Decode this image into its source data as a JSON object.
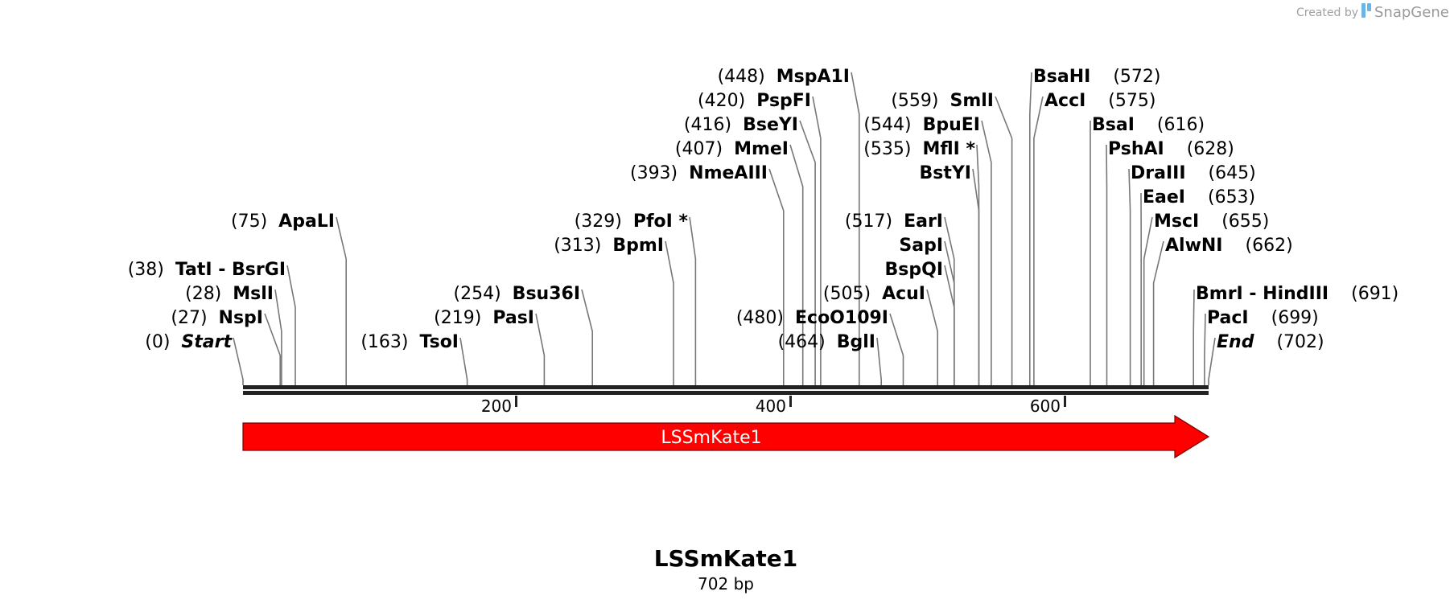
{
  "brand": {
    "created_by": "Created by",
    "name": "SnapGene",
    "icon": "snapgene-logo-icon"
  },
  "sequence": {
    "name": "LSSmKate1",
    "length_label": "702 bp",
    "length": 702
  },
  "ruler": {
    "ticks": [
      "200",
      "400",
      "600"
    ]
  },
  "feature": {
    "name": "LSSmKate1",
    "start": 0,
    "end": 702,
    "direction": "forward",
    "color": "#ff0000"
  },
  "sites": [
    {
      "name": "Start",
      "pos": 0,
      "pos_label": "(0)",
      "side": "left",
      "italic": true,
      "row": 0
    },
    {
      "name": "NspI",
      "pos": 27,
      "pos_label": "(27)",
      "side": "left",
      "row": 1
    },
    {
      "name": "MslI",
      "pos": 28,
      "pos_label": "(28)",
      "side": "left",
      "row": 2
    },
    {
      "name": "TatI  - BsrGI",
      "pos": 38,
      "pos_label": "(38)",
      "side": "left",
      "row": 3
    },
    {
      "name": "ApaLI",
      "pos": 75,
      "pos_label": "(75)",
      "side": "left",
      "row": 5
    },
    {
      "name": "TsoI",
      "pos": 163,
      "pos_label": "(163)",
      "side": "left",
      "row": 0
    },
    {
      "name": "PasI",
      "pos": 219,
      "pos_label": "(219)",
      "side": "left",
      "row": 1
    },
    {
      "name": "Bsu36I",
      "pos": 254,
      "pos_label": "(254)",
      "side": "left",
      "row": 2
    },
    {
      "name": "BpmI",
      "pos": 313,
      "pos_label": "(313)",
      "side": "left",
      "row": 4
    },
    {
      "name": "PfoI *",
      "pos": 329,
      "pos_label": "(329)",
      "side": "left",
      "row": 5
    },
    {
      "name": "NmeAIII",
      "pos": 393,
      "pos_label": "(393)",
      "side": "left",
      "row": 7
    },
    {
      "name": "MmeI",
      "pos": 407,
      "pos_label": "(407)",
      "side": "left",
      "row": 8
    },
    {
      "name": "BseYI",
      "pos": 416,
      "pos_label": "(416)",
      "side": "left",
      "row": 9
    },
    {
      "name": "PspFI",
      "pos": 420,
      "pos_label": "(420)",
      "side": "left",
      "row": 10
    },
    {
      "name": "MspA1I",
      "pos": 448,
      "pos_label": "(448)",
      "side": "left",
      "row": 11
    },
    {
      "name": "BglI",
      "pos": 464,
      "pos_label": "(464)",
      "side": "left",
      "row": 0
    },
    {
      "name": "EcoO109I",
      "pos": 480,
      "pos_label": "(480)",
      "side": "left",
      "row": 1
    },
    {
      "name": "AcuI",
      "pos": 505,
      "pos_label": "(505)",
      "side": "left",
      "row": 2
    },
    {
      "name": "BspQI",
      "pos": 517,
      "pos_label": "",
      "side": "left",
      "row": 3
    },
    {
      "name": "SapI",
      "pos": 517,
      "pos_label": "",
      "side": "left",
      "row": 4
    },
    {
      "name": "EarI",
      "pos": 517,
      "pos_label": "(517)",
      "side": "left",
      "row": 5
    },
    {
      "name": "BstYI",
      "pos": 535,
      "pos_label": "",
      "side": "left",
      "row": 7
    },
    {
      "name": "MflI *",
      "pos": 535,
      "pos_label": "(535)",
      "side": "left",
      "row": 8
    },
    {
      "name": "BpuEI",
      "pos": 544,
      "pos_label": "(544)",
      "side": "left",
      "row": 9
    },
    {
      "name": "SmlI",
      "pos": 559,
      "pos_label": "(559)",
      "side": "left",
      "row": 10
    },
    {
      "name": "AccI",
      "pos": 575,
      "pos_label": "(575)",
      "side": "right",
      "row": 10
    },
    {
      "name": "BsaHI",
      "pos": 572,
      "pos_label": "(572)",
      "side": "right",
      "row": 11
    },
    {
      "name": "BsaI",
      "pos": 616,
      "pos_label": "(616)",
      "side": "right",
      "row": 9
    },
    {
      "name": "PshAI",
      "pos": 628,
      "pos_label": "(628)",
      "side": "right",
      "row": 8
    },
    {
      "name": "DraIII",
      "pos": 645,
      "pos_label": "(645)",
      "side": "right",
      "row": 7
    },
    {
      "name": "EaeI",
      "pos": 653,
      "pos_label": "(653)",
      "side": "right",
      "row": 6
    },
    {
      "name": "MscI",
      "pos": 655,
      "pos_label": "(655)",
      "side": "right",
      "row": 5
    },
    {
      "name": "AlwNI",
      "pos": 662,
      "pos_label": "(662)",
      "side": "right",
      "row": 4
    },
    {
      "name": "BmrI  - HindIII",
      "pos": 691,
      "pos_label": "(691)",
      "side": "right",
      "row": 2
    },
    {
      "name": "PacI",
      "pos": 699,
      "pos_label": "(699)",
      "side": "right",
      "row": 1
    },
    {
      "name": "End",
      "pos": 702,
      "pos_label": "(702)",
      "side": "right",
      "italic": true,
      "row": 0
    }
  ]
}
